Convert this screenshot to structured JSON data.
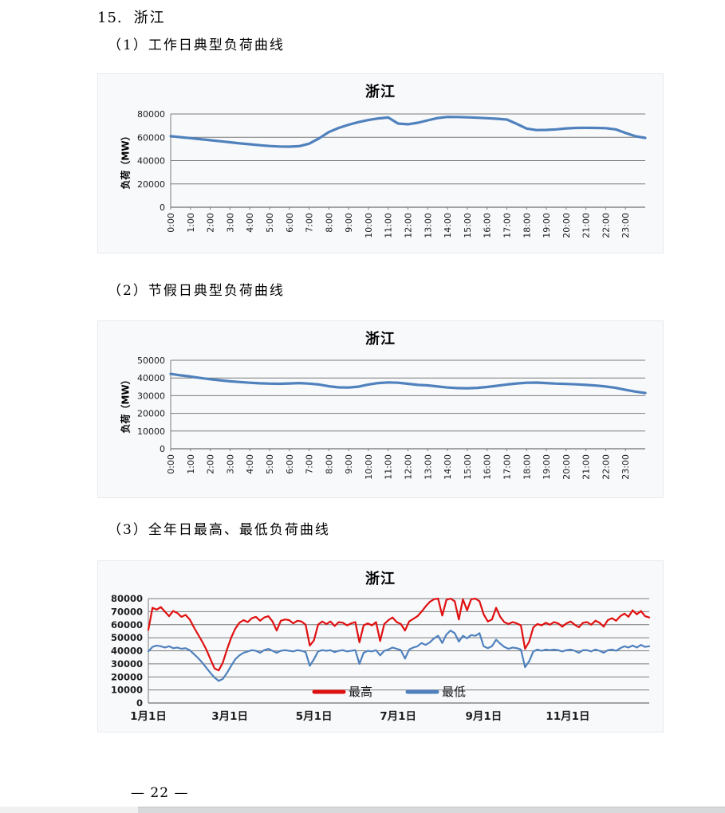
{
  "page": {
    "number_label": "— 22 —"
  },
  "heading": {
    "item_number": "15.",
    "region": "浙江"
  },
  "sections": [
    {
      "label": "（1）工作日典型负荷曲线"
    },
    {
      "label": "（2）节假日典型负荷曲线"
    },
    {
      "label": "（3）全年日最高、最低负荷曲线"
    }
  ],
  "chart_data": [
    {
      "id": "workday-typical-load",
      "type": "line",
      "title": "浙江",
      "ylabel": "负荷（MW）",
      "ylim": [
        0,
        80000
      ],
      "yticks": [
        0,
        20000,
        40000,
        60000,
        80000
      ],
      "grid": true,
      "x_labels": [
        "0:00",
        "1:00",
        "2:00",
        "3:00",
        "4:00",
        "5:00",
        "6:00",
        "7:00",
        "8:00",
        "9:00",
        "10:00",
        "11:00",
        "12:00",
        "13:00",
        "14:00",
        "15:00",
        "16:00",
        "17:00",
        "18:00",
        "19:00",
        "20:00",
        "21:00",
        "22:00",
        "23:00"
      ],
      "x_minutes_per_point": 30,
      "series": [
        {
          "name": "负荷",
          "color": "#4F81BD",
          "values": [
            61000,
            60100,
            59300,
            58400,
            57500,
            56600,
            55700,
            54800,
            54000,
            53200,
            52500,
            52100,
            52000,
            52400,
            54500,
            59000,
            64500,
            68000,
            70800,
            73000,
            74800,
            76200,
            77000,
            71800,
            71200,
            72500,
            74500,
            76500,
            77500,
            77400,
            77100,
            76800,
            76400,
            75900,
            75200,
            71500,
            67500,
            66200,
            66300,
            66800,
            67600,
            68000,
            68100,
            68000,
            67800,
            66800,
            63800,
            60900,
            59500
          ]
        }
      ]
    },
    {
      "id": "holiday-typical-load",
      "type": "line",
      "title": "浙江",
      "ylabel": "负荷（MW）",
      "ylim": [
        0,
        50000
      ],
      "yticks": [
        0,
        10000,
        20000,
        30000,
        40000,
        50000
      ],
      "grid": true,
      "x_labels": [
        "0:00",
        "1:00",
        "2:00",
        "3:00",
        "4:00",
        "5:00",
        "6:00",
        "7:00",
        "8:00",
        "9:00",
        "10:00",
        "11:00",
        "12:00",
        "13:00",
        "14:00",
        "15:00",
        "16:00",
        "17:00",
        "18:00",
        "19:00",
        "20:00",
        "21:00",
        "22:00",
        "23:00"
      ],
      "x_minutes_per_point": 30,
      "series": [
        {
          "name": "负荷",
          "color": "#4F81BD",
          "values": [
            42300,
            41500,
            40800,
            40000,
            39300,
            38700,
            38100,
            37700,
            37300,
            37000,
            36800,
            36700,
            36900,
            37100,
            36800,
            36300,
            35300,
            34700,
            34600,
            35100,
            36300,
            37100,
            37500,
            37300,
            36700,
            36100,
            35800,
            35200,
            34600,
            34300,
            34200,
            34400,
            34900,
            35600,
            36300,
            36900,
            37300,
            37400,
            37100,
            36800,
            36600,
            36400,
            36100,
            35700,
            35200,
            34400,
            33300,
            32300,
            31500
          ]
        }
      ]
    },
    {
      "id": "annual-daily-max-min-load",
      "type": "line",
      "title": "浙江",
      "ylim": [
        0,
        80000
      ],
      "yticks": [
        0,
        10000,
        20000,
        30000,
        40000,
        50000,
        60000,
        70000,
        80000
      ],
      "grid": true,
      "x_labels": [
        "1月1日",
        "3月1日",
        "5月1日",
        "7月1日",
        "9月1日",
        "11月1日"
      ],
      "x_label_days": [
        1,
        60,
        121,
        182,
        244,
        305
      ],
      "days_total": 364,
      "sample_step_days": 3,
      "legend": {
        "position": "inside-bottom-center",
        "items": [
          "最高",
          "最低"
        ]
      },
      "series": [
        {
          "name": "最高",
          "color": "#E01010",
          "values": [
            56000,
            73000,
            71500,
            73500,
            70000,
            66500,
            70500,
            69000,
            66000,
            67500,
            64000,
            58000,
            52500,
            47000,
            41000,
            33500,
            26500,
            25000,
            31000,
            41000,
            50000,
            57000,
            61500,
            63500,
            62000,
            65000,
            66000,
            63000,
            65500,
            66500,
            62500,
            55500,
            63000,
            64000,
            63500,
            61000,
            63000,
            62500,
            60000,
            44000,
            48000,
            60000,
            62500,
            60500,
            62500,
            59000,
            62000,
            61500,
            59500,
            61000,
            62000,
            46500,
            59500,
            61000,
            59500,
            62000,
            47500,
            60500,
            63500,
            65500,
            62000,
            60500,
            55500,
            62500,
            64500,
            66500,
            70000,
            74000,
            77500,
            79500,
            80000,
            67000,
            79000,
            80000,
            78000,
            64000,
            79500,
            71000,
            79500,
            80000,
            78000,
            68000,
            62500,
            64000,
            73000,
            66000,
            62000,
            60500,
            62000,
            61000,
            59500,
            41500,
            47000,
            58000,
            60500,
            59500,
            61500,
            60000,
            62000,
            61000,
            58500,
            61000,
            62500,
            60000,
            58000,
            61500,
            62000,
            60000,
            63000,
            61500,
            58500,
            63500,
            65000,
            63000,
            66500,
            68500,
            66000,
            71000,
            68000,
            70500,
            66500,
            65500
          ]
        },
        {
          "name": "最低",
          "color": "#4F81BD",
          "values": [
            39500,
            43000,
            44000,
            43500,
            42500,
            43500,
            42000,
            42500,
            41500,
            42000,
            40500,
            37500,
            34500,
            31000,
            27000,
            23000,
            19500,
            17000,
            18500,
            23000,
            28500,
            33500,
            36500,
            38500,
            39500,
            40500,
            40000,
            38500,
            40500,
            41500,
            40000,
            38500,
            40000,
            40500,
            40000,
            39500,
            40500,
            40000,
            39000,
            28500,
            33500,
            39500,
            40500,
            40000,
            40500,
            39000,
            40000,
            40500,
            39500,
            40000,
            40500,
            30000,
            38500,
            40000,
            39500,
            40500,
            36500,
            40000,
            41000,
            42500,
            41500,
            40500,
            34000,
            41000,
            42500,
            43500,
            46000,
            44500,
            46500,
            49500,
            51500,
            46000,
            52500,
            55500,
            53500,
            47000,
            51500,
            49500,
            52000,
            51500,
            53500,
            43500,
            42000,
            43500,
            48500,
            45500,
            43000,
            41500,
            42500,
            42000,
            41000,
            27500,
            32000,
            39500,
            41000,
            40000,
            41000,
            40500,
            41000,
            40500,
            39500,
            40500,
            41000,
            40000,
            38500,
            40500,
            40500,
            39500,
            41000,
            40000,
            38500,
            40500,
            41000,
            40000,
            42000,
            43500,
            42500,
            44000,
            42500,
            44500,
            43000,
            43500
          ]
        }
      ]
    }
  ]
}
